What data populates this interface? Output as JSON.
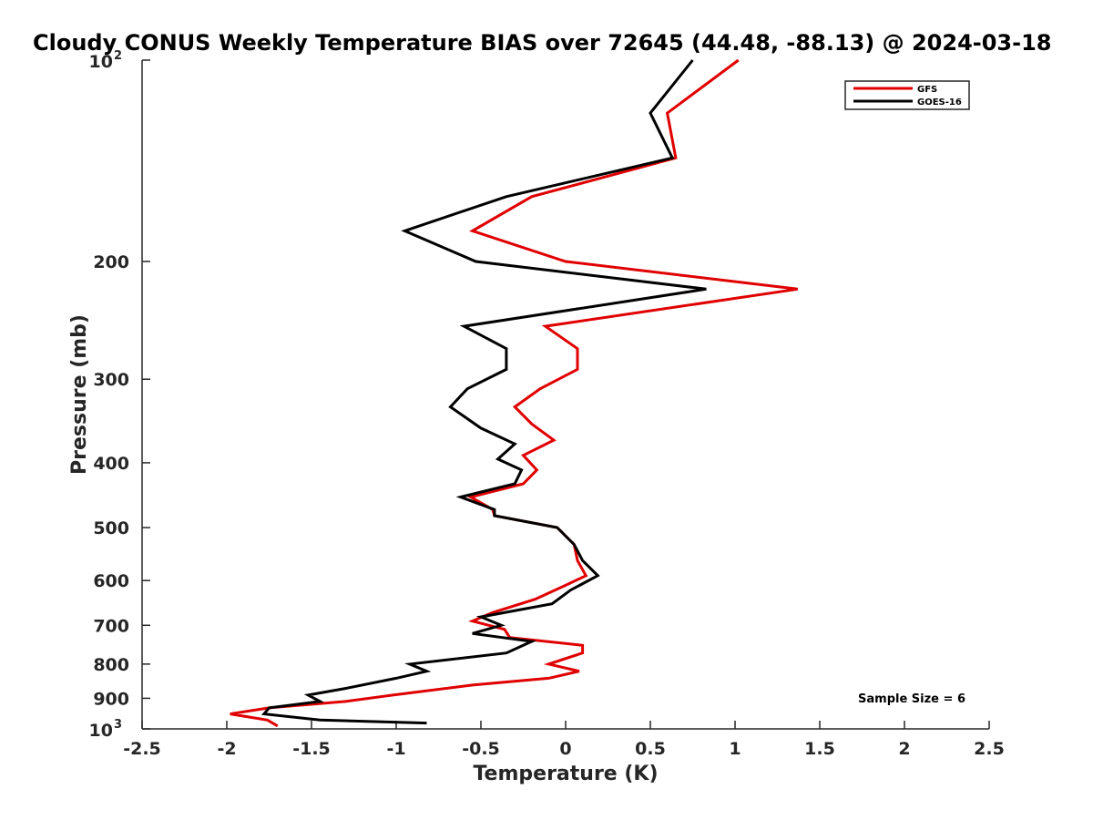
{
  "chart_data": {
    "type": "line",
    "title": "Cloudy CONUS Weekly Temperature BIAS over 72645 (44.48, -88.13) @ 2024-03-18",
    "xlabel": "Temperature (K)",
    "ylabel": "Pressure (mb)",
    "xlim": [
      -2.5,
      2.5
    ],
    "ylim": [
      100,
      1000
    ],
    "yscale": "log",
    "y_reversed": true,
    "grid": false,
    "legend_position": "top-right",
    "x_ticks": [
      "-2.5",
      "-2",
      "-1.5",
      "-1",
      "-0.5",
      "0",
      "0.5",
      "1",
      "1.5",
      "2",
      "2.5"
    ],
    "x_tick_values": [
      -2.5,
      -2,
      -1.5,
      -1,
      -0.5,
      0,
      0.5,
      1,
      1.5,
      2,
      2.5
    ],
    "y_ticks": [
      {
        "value": 100,
        "base": "10",
        "exp": "2"
      },
      {
        "value": 200,
        "label": "200"
      },
      {
        "value": 300,
        "label": "300"
      },
      {
        "value": 400,
        "label": "400"
      },
      {
        "value": 500,
        "label": "500"
      },
      {
        "value": 600,
        "label": "600"
      },
      {
        "value": 700,
        "label": "700"
      },
      {
        "value": 800,
        "label": "800"
      },
      {
        "value": 900,
        "label": "900"
      },
      {
        "value": 1000,
        "base": "10",
        "exp": "3"
      }
    ],
    "annotation": "Sample Size = 6",
    "series": [
      {
        "name": "GFS",
        "color": "#e00000",
        "points": [
          {
            "x": 1.02,
            "y": 100
          },
          {
            "x": 0.6,
            "y": 120
          },
          {
            "x": 0.65,
            "y": 140
          },
          {
            "x": -0.2,
            "y": 160
          },
          {
            "x": -0.55,
            "y": 180
          },
          {
            "x": 0.0,
            "y": 200
          },
          {
            "x": 1.37,
            "y": 220
          },
          {
            "x": -0.12,
            "y": 250
          },
          {
            "x": 0.07,
            "y": 270
          },
          {
            "x": 0.07,
            "y": 290
          },
          {
            "x": -0.15,
            "y": 310
          },
          {
            "x": -0.3,
            "y": 330
          },
          {
            "x": -0.2,
            "y": 350
          },
          {
            "x": -0.07,
            "y": 370
          },
          {
            "x": -0.25,
            "y": 390
          },
          {
            "x": -0.17,
            "y": 410
          },
          {
            "x": -0.25,
            "y": 430
          },
          {
            "x": -0.56,
            "y": 450
          },
          {
            "x": -0.43,
            "y": 470
          },
          {
            "x": -0.42,
            "y": 480
          },
          {
            "x": -0.05,
            "y": 500
          },
          {
            "x": 0.05,
            "y": 530
          },
          {
            "x": 0.07,
            "y": 560
          },
          {
            "x": 0.12,
            "y": 590
          },
          {
            "x": 0.0,
            "y": 610
          },
          {
            "x": -0.18,
            "y": 640
          },
          {
            "x": -0.43,
            "y": 670
          },
          {
            "x": -0.55,
            "y": 690
          },
          {
            "x": -0.36,
            "y": 710
          },
          {
            "x": -0.33,
            "y": 730
          },
          {
            "x": 0.1,
            "y": 750
          },
          {
            "x": 0.1,
            "y": 770
          },
          {
            "x": -0.1,
            "y": 800
          },
          {
            "x": 0.08,
            "y": 820
          },
          {
            "x": -0.1,
            "y": 840
          },
          {
            "x": -0.55,
            "y": 860
          },
          {
            "x": -1.02,
            "y": 890
          },
          {
            "x": -1.3,
            "y": 910
          },
          {
            "x": -1.75,
            "y": 930
          },
          {
            "x": -1.98,
            "y": 950
          },
          {
            "x": -1.76,
            "y": 970
          },
          {
            "x": -1.7,
            "y": 990
          }
        ]
      },
      {
        "name": "GOES-16",
        "color": "#000000",
        "points": [
          {
            "x": 0.75,
            "y": 100
          },
          {
            "x": 0.5,
            "y": 120
          },
          {
            "x": 0.63,
            "y": 140
          },
          {
            "x": -0.35,
            "y": 160
          },
          {
            "x": -0.95,
            "y": 180
          },
          {
            "x": -0.53,
            "y": 200
          },
          {
            "x": 0.83,
            "y": 220
          },
          {
            "x": -0.6,
            "y": 250
          },
          {
            "x": -0.35,
            "y": 270
          },
          {
            "x": -0.35,
            "y": 290
          },
          {
            "x": -0.58,
            "y": 310
          },
          {
            "x": -0.68,
            "y": 330
          },
          {
            "x": -0.5,
            "y": 355
          },
          {
            "x": -0.3,
            "y": 375
          },
          {
            "x": -0.4,
            "y": 395
          },
          {
            "x": -0.26,
            "y": 410
          },
          {
            "x": -0.3,
            "y": 430
          },
          {
            "x": -0.62,
            "y": 450
          },
          {
            "x": -0.42,
            "y": 470
          },
          {
            "x": -0.42,
            "y": 480
          },
          {
            "x": -0.05,
            "y": 500
          },
          {
            "x": 0.05,
            "y": 530
          },
          {
            "x": 0.1,
            "y": 560
          },
          {
            "x": 0.19,
            "y": 590
          },
          {
            "x": 0.03,
            "y": 620
          },
          {
            "x": -0.08,
            "y": 650
          },
          {
            "x": -0.5,
            "y": 680
          },
          {
            "x": -0.38,
            "y": 700
          },
          {
            "x": -0.55,
            "y": 720
          },
          {
            "x": -0.2,
            "y": 740
          },
          {
            "x": -0.35,
            "y": 770
          },
          {
            "x": -0.92,
            "y": 800
          },
          {
            "x": -0.82,
            "y": 820
          },
          {
            "x": -1.0,
            "y": 840
          },
          {
            "x": -1.3,
            "y": 870
          },
          {
            "x": -1.52,
            "y": 890
          },
          {
            "x": -1.45,
            "y": 910
          },
          {
            "x": -1.75,
            "y": 930
          },
          {
            "x": -1.78,
            "y": 950
          },
          {
            "x": -1.45,
            "y": 970
          },
          {
            "x": -0.82,
            "y": 980
          }
        ]
      }
    ]
  }
}
